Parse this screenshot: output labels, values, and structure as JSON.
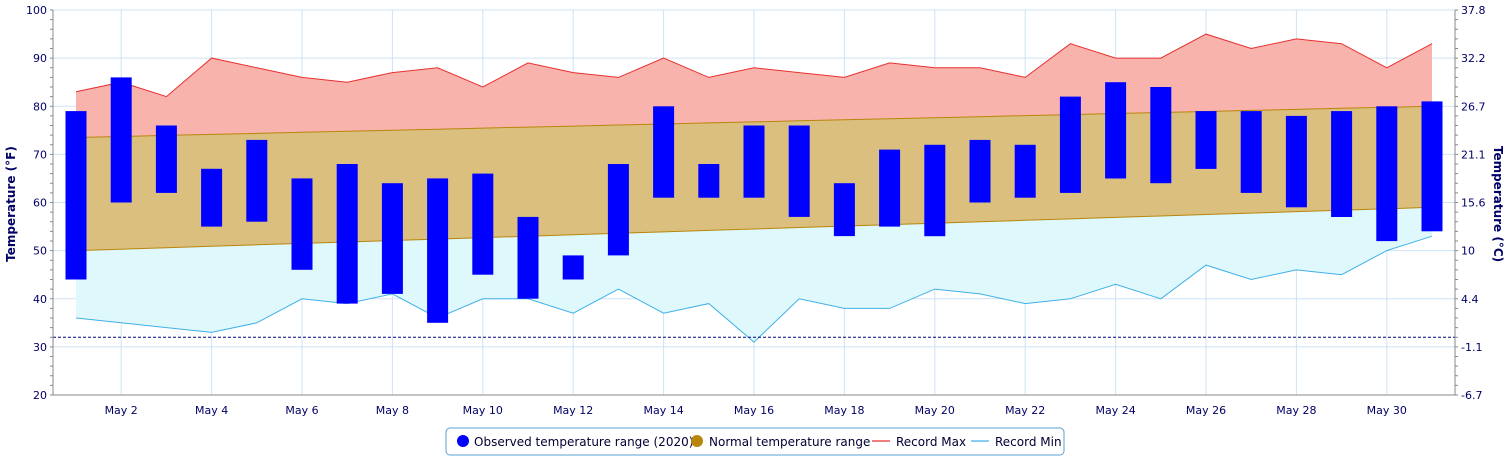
{
  "chart_data": {
    "type": "bar",
    "left_axis": {
      "label": "Temperature (°F)",
      "range": [
        20,
        100
      ],
      "ticks": [
        20,
        30,
        40,
        50,
        60,
        70,
        80,
        90,
        100
      ]
    },
    "right_axis": {
      "label": "Temperature (°C)",
      "tick_labels": [
        "-6.7",
        "-1.1",
        "4.4",
        "10",
        "15.6",
        "21.1",
        "26.7",
        "32.2",
        "37.8"
      ]
    },
    "x_axis": {
      "days": [
        1,
        31
      ],
      "tick_days": [
        2,
        4,
        6,
        8,
        10,
        12,
        14,
        16,
        18,
        20,
        22,
        24,
        26,
        28,
        30
      ],
      "tick_labels": [
        "May 2",
        "May 4",
        "May 6",
        "May 8",
        "May 10",
        "May 12",
        "May 14",
        "May 16",
        "May 18",
        "May 20",
        "May 22",
        "May 24",
        "May 26",
        "May 28",
        "May 30"
      ]
    },
    "freezing_line": 32,
    "observed": {
      "name": "Observed temperature range (2020)",
      "color": "#0000ff",
      "low": [
        44,
        60,
        62,
        55,
        56,
        46,
        39,
        41,
        35,
        45,
        40,
        44,
        49,
        61,
        61,
        61,
        57,
        53,
        55,
        53,
        60,
        61,
        62,
        65,
        64,
        67,
        62,
        59,
        57,
        52,
        54
      ],
      "high": [
        79,
        86,
        76,
        67,
        73,
        65,
        68,
        64,
        65,
        66,
        57,
        49,
        68,
        80,
        68,
        76,
        76,
        64,
        71,
        72,
        73,
        72,
        82,
        85,
        84,
        79,
        79,
        78,
        79,
        80,
        81
      ]
    },
    "normal": {
      "name": "Normal temperature range",
      "color": "#b8860b",
      "low_start": 50,
      "low_end": 59,
      "high_start": 73.5,
      "high_end": 80
    },
    "record_max": {
      "name": "Record Max",
      "color": "#e83030",
      "values": [
        83,
        85,
        82,
        90,
        88,
        86,
        85,
        87,
        88,
        84,
        89,
        87,
        86,
        90,
        86,
        88,
        87,
        86,
        89,
        88,
        88,
        86,
        93,
        90,
        90,
        95,
        92,
        94,
        93,
        88,
        93
      ]
    },
    "record_min": {
      "name": "Record Min",
      "color": "#40b0e8",
      "values": [
        36,
        35,
        34,
        33,
        35,
        40,
        39,
        41,
        36,
        40,
        40,
        37,
        42,
        37,
        39,
        31,
        40,
        38,
        38,
        42,
        41,
        39,
        40,
        43,
        40,
        47,
        44,
        46,
        45,
        50,
        53
      ]
    },
    "legend": [
      "Observed temperature range (2020)",
      "Normal temperature range",
      "Record Max",
      "Record Min"
    ]
  }
}
